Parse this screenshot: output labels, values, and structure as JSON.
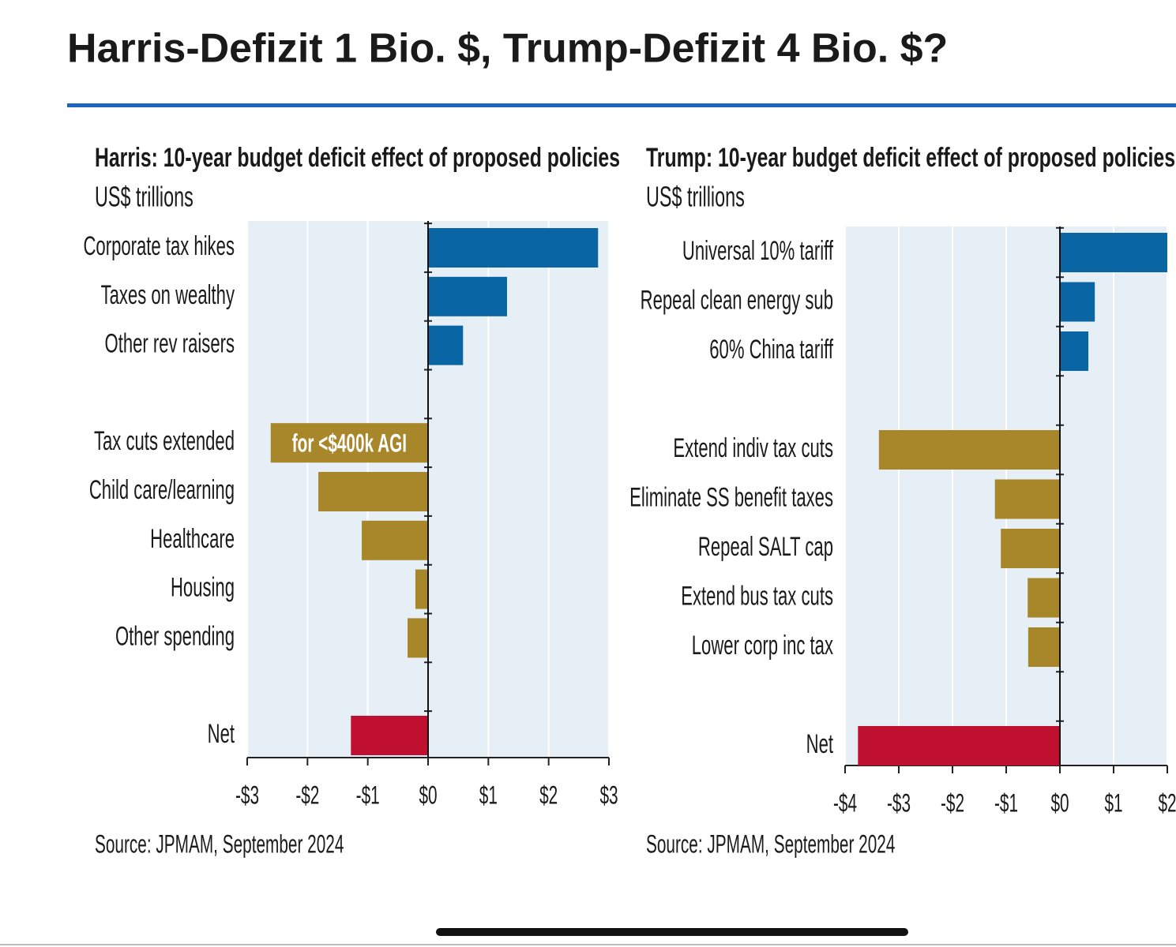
{
  "title": "Harris-Defizit 1 Bio. $, Trump-Defizit 4 Bio. $?",
  "chart_data": [
    {
      "type": "barh",
      "title": "Harris: 10-year budget deficit effect of proposed policies",
      "subtitle": "US$ trillions",
      "categories": [
        "Corporate tax hikes",
        "Taxes on wealthy",
        "Other rev raisers",
        null,
        "Tax cuts extended",
        "Child care/learning",
        "Healthcare",
        "Housing",
        "Other spending",
        null,
        "Net"
      ],
      "values": [
        2.82,
        1.31,
        0.58,
        null,
        -2.61,
        -1.82,
        -1.1,
        -0.21,
        -0.34,
        null,
        -1.28
      ],
      "colors": [
        "#0a65a5",
        "#0a65a5",
        "#0a65a5",
        null,
        "#a8862a",
        "#a8862a",
        "#a8862a",
        "#a8862a",
        "#a8862a",
        null,
        "#c0102f"
      ],
      "annotation": "for <$400k AGI",
      "xlim": [
        -3,
        3
      ],
      "xticks": [
        {
          "value": -3,
          "label": "-$3"
        },
        {
          "value": -2,
          "label": "-$2"
        },
        {
          "value": -1,
          "label": "-$1"
        },
        {
          "value": 0,
          "label": "$0"
        },
        {
          "value": 1,
          "label": "$1"
        },
        {
          "value": 2,
          "label": "$2"
        },
        {
          "value": 3,
          "label": "$3"
        }
      ],
      "grid": true,
      "source": "Source: JPMAM, September 2024"
    },
    {
      "type": "barh",
      "title": "Trump: 10-year budget deficit effect of proposed policies",
      "subtitle": "US$ trillions",
      "categories": [
        "Universal 10% tariff",
        "Repeal clean energy sub",
        "60% China tariff",
        null,
        "Extend indiv tax cuts",
        "Eliminate SS benefit taxes",
        "Repeal SALT cap",
        "Extend bus tax cuts",
        "Lower corp inc tax",
        null,
        "Net"
      ],
      "values": [
        2.0,
        0.65,
        0.53,
        null,
        -3.37,
        -1.21,
        -1.1,
        -0.6,
        -0.59,
        null,
        -3.76
      ],
      "colors": [
        "#0a65a5",
        "#0a65a5",
        "#0a65a5",
        null,
        "#a8862a",
        "#a8862a",
        "#a8862a",
        "#a8862a",
        "#a8862a",
        null,
        "#c0102f"
      ],
      "xlim": [
        -4,
        2
      ],
      "xticks": [
        {
          "value": -4,
          "label": "-$4"
        },
        {
          "value": -3,
          "label": "-$3"
        },
        {
          "value": -2,
          "label": "-$2"
        },
        {
          "value": -1,
          "label": "-$1"
        },
        {
          "value": 0,
          "label": "$0"
        },
        {
          "value": 1,
          "label": "$1"
        },
        {
          "value": 2,
          "label": "$2"
        }
      ],
      "grid": true,
      "source": "Source: JPMAM, September 2024"
    }
  ]
}
